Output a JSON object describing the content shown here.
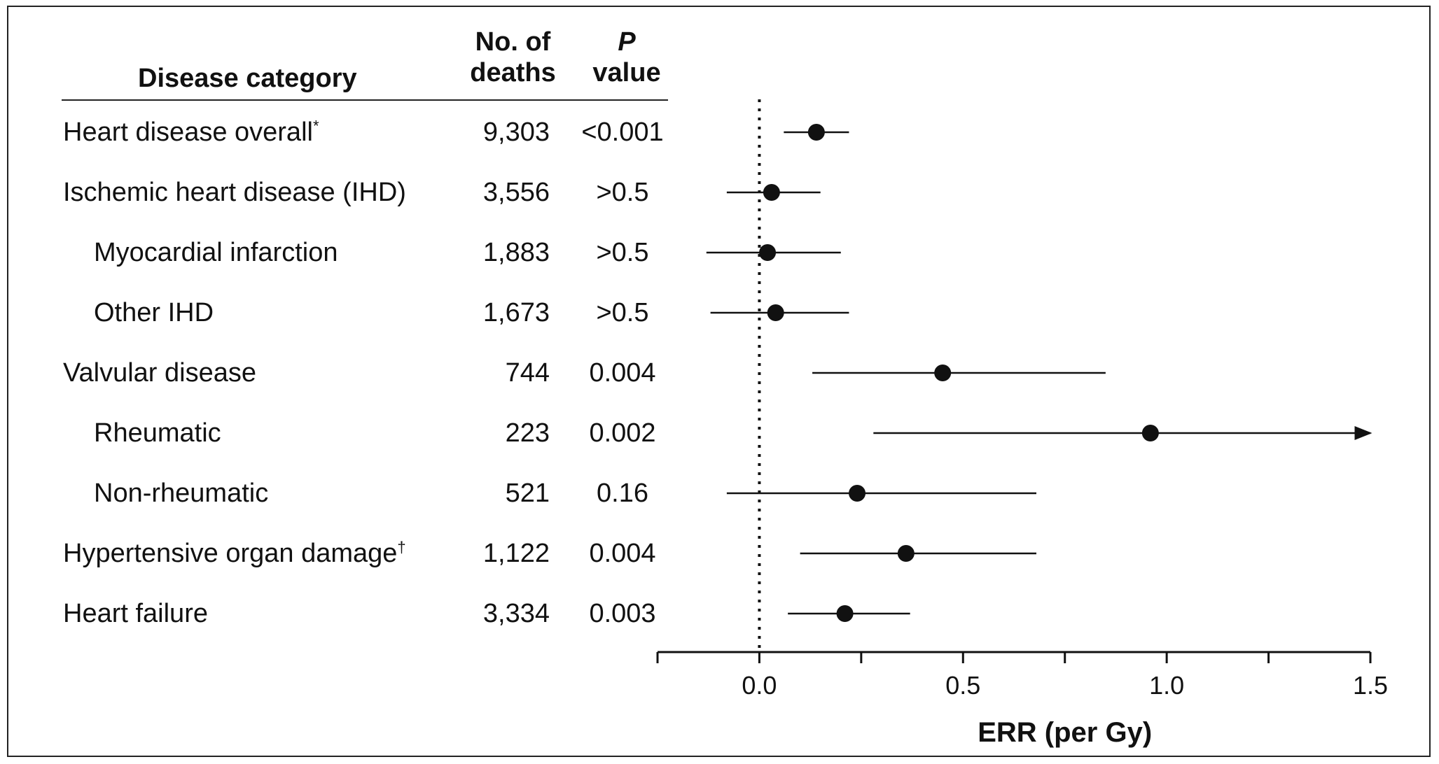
{
  "header": {
    "category": "Disease category",
    "deaths_line1": "No. of",
    "deaths_line2": "deaths",
    "p_line1": "P",
    "p_line2": "value"
  },
  "chart_data": {
    "type": "scatter",
    "xlabel": "ERR (per Gy)",
    "xlim": [
      -0.25,
      1.5
    ],
    "xticks": [
      0.0,
      0.5,
      1.0,
      1.5
    ],
    "xtick_labels": [
      "0.0",
      "0.5",
      "1.0",
      "1.5"
    ],
    "reference_line": 0.0,
    "rows": [
      {
        "label": "Heart disease overall",
        "footnote": "*",
        "indent": false,
        "deaths": "9,303",
        "p": "<0.001",
        "est": 0.14,
        "lo": 0.06,
        "hi": 0.22,
        "arrow": false
      },
      {
        "label": "Ischemic heart disease (IHD)",
        "footnote": "",
        "indent": false,
        "deaths": "3,556",
        "p": ">0.5",
        "est": 0.03,
        "lo": -0.08,
        "hi": 0.15,
        "arrow": false
      },
      {
        "label": "Myocardial infarction",
        "footnote": "",
        "indent": true,
        "deaths": "1,883",
        "p": ">0.5",
        "est": 0.02,
        "lo": -0.13,
        "hi": 0.2,
        "arrow": false
      },
      {
        "label": "Other IHD",
        "footnote": "",
        "indent": true,
        "deaths": "1,673",
        "p": ">0.5",
        "est": 0.04,
        "lo": -0.12,
        "hi": 0.22,
        "arrow": false
      },
      {
        "label": "Valvular disease",
        "footnote": "",
        "indent": false,
        "deaths": "744",
        "p": "0.004",
        "est": 0.45,
        "lo": 0.13,
        "hi": 0.85,
        "arrow": false
      },
      {
        "label": "Rheumatic",
        "footnote": "",
        "indent": true,
        "deaths": "223",
        "p": "0.002",
        "est": 0.96,
        "lo": 0.28,
        "hi": 1.5,
        "arrow": true
      },
      {
        "label": "Non-rheumatic",
        "footnote": "",
        "indent": true,
        "deaths": "521",
        "p": "0.16",
        "est": 0.24,
        "lo": -0.08,
        "hi": 0.68,
        "arrow": false
      },
      {
        "label": "Hypertensive organ damage",
        "footnote": "†",
        "indent": false,
        "deaths": "1,122",
        "p": "0.004",
        "est": 0.36,
        "lo": 0.1,
        "hi": 0.68,
        "arrow": false
      },
      {
        "label": "Heart failure",
        "footnote": "",
        "indent": false,
        "deaths": "3,334",
        "p": "0.003",
        "est": 0.21,
        "lo": 0.07,
        "hi": 0.37,
        "arrow": false
      }
    ]
  }
}
